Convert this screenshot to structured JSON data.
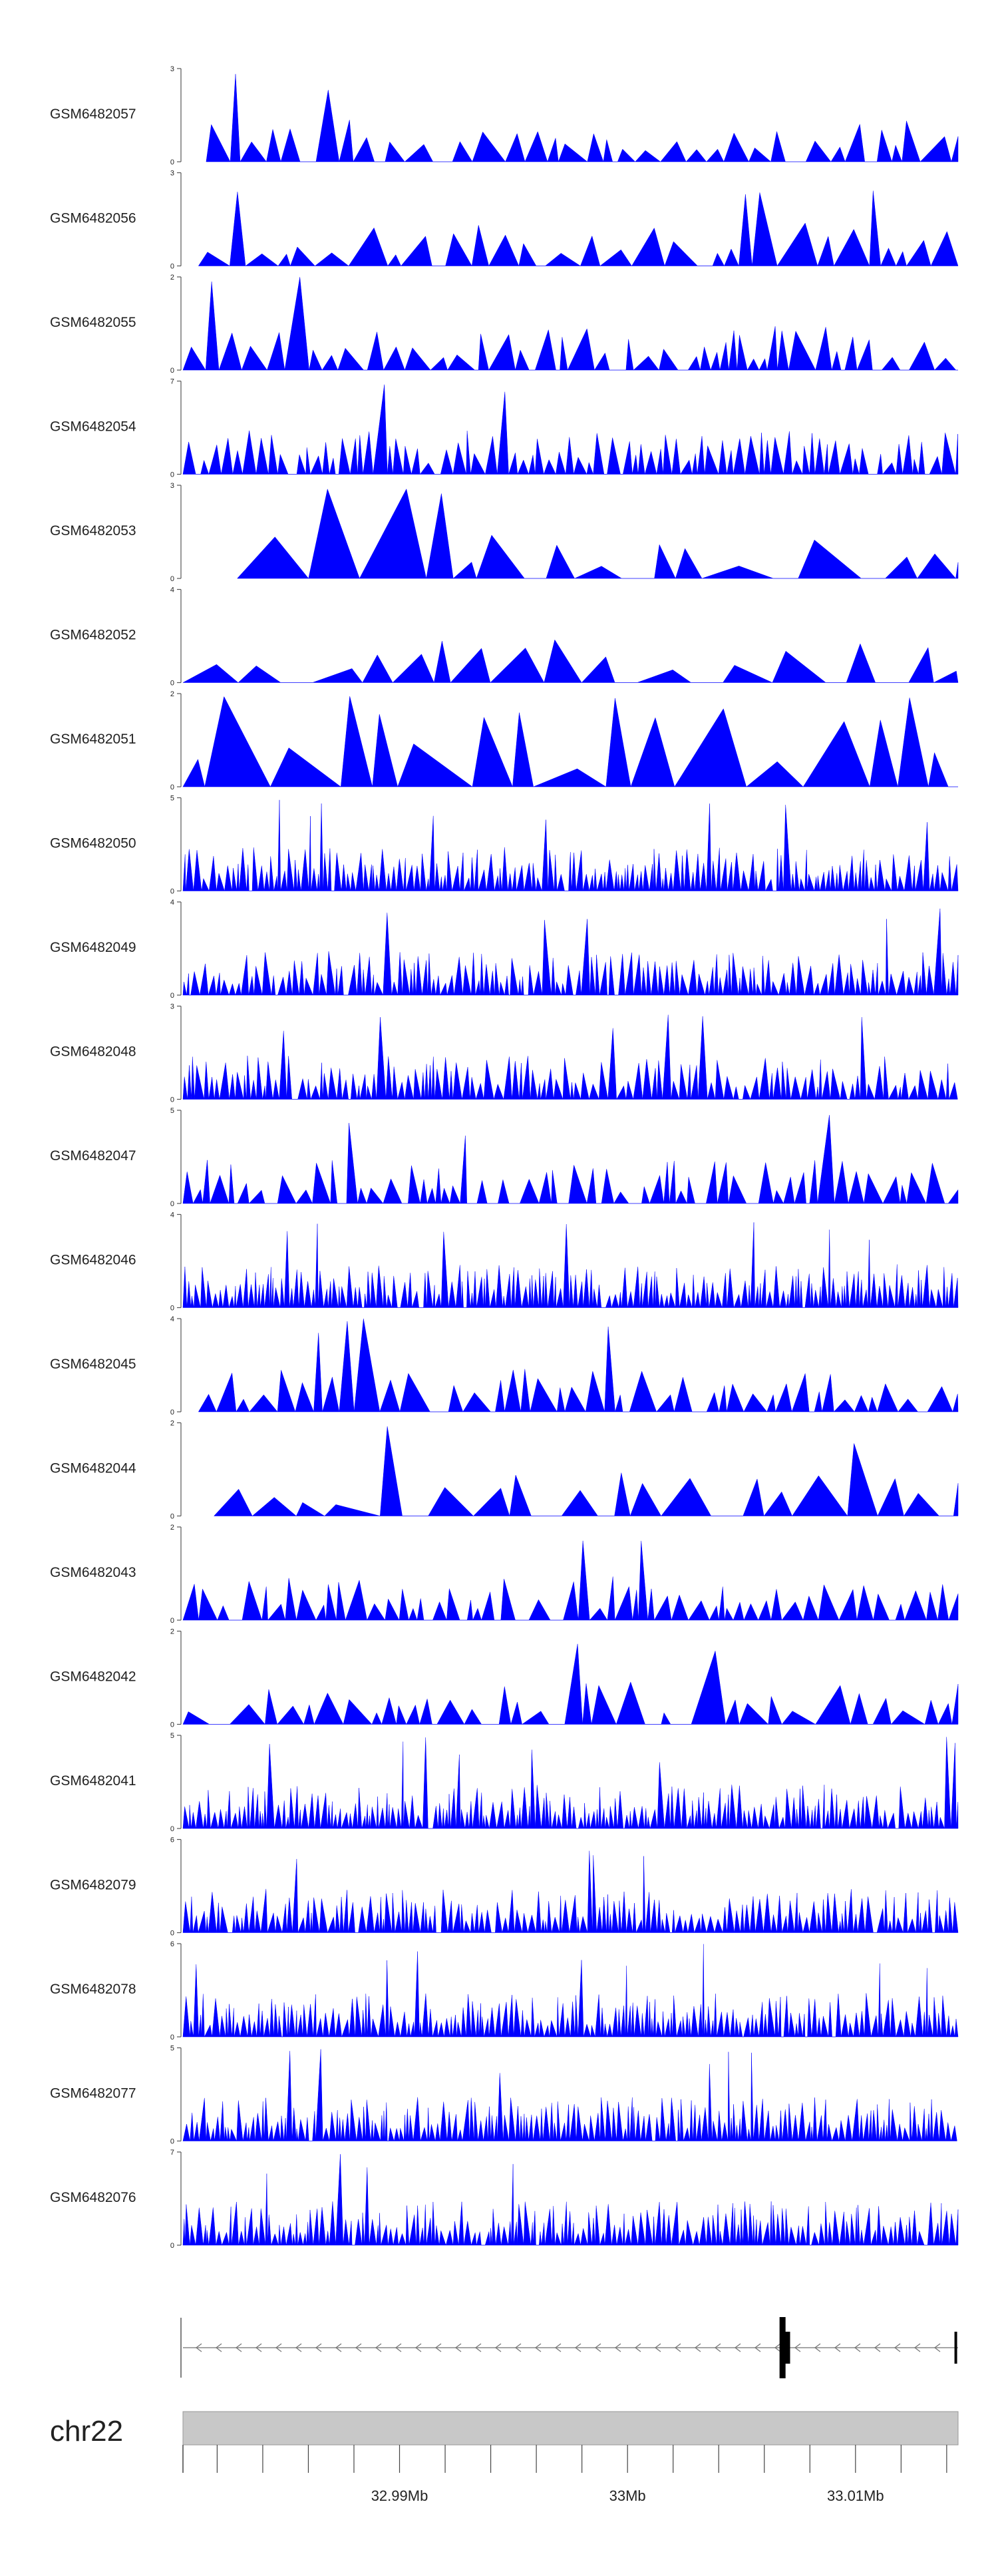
{
  "chart_data": {
    "type": "area",
    "title": "",
    "color": "#0000ff",
    "tracks": [
      {
        "label": "GSM6482057",
        "ymax": 3
      },
      {
        "label": "GSM6482056",
        "ymax": 3
      },
      {
        "label": "GSM6482055",
        "ymax": 2
      },
      {
        "label": "GSM6482054",
        "ymax": 7
      },
      {
        "label": "GSM6482053",
        "ymax": 3
      },
      {
        "label": "GSM6482052",
        "ymax": 4
      },
      {
        "label": "GSM6482051",
        "ymax": 2
      },
      {
        "label": "GSM6482050",
        "ymax": 5
      },
      {
        "label": "GSM6482049",
        "ymax": 4
      },
      {
        "label": "GSM6482048",
        "ymax": 3
      },
      {
        "label": "GSM6482047",
        "ymax": 5
      },
      {
        "label": "GSM6482046",
        "ymax": 4
      },
      {
        "label": "GSM6482045",
        "ymax": 4
      },
      {
        "label": "GSM6482044",
        "ymax": 2
      },
      {
        "label": "GSM6482043",
        "ymax": 2
      },
      {
        "label": "GSM6482042",
        "ymax": 2
      },
      {
        "label": "GSM6482041",
        "ymax": 5
      },
      {
        "label": "GSM6482079",
        "ymax": 6
      },
      {
        "label": "GSM6482078",
        "ymax": 6
      },
      {
        "label": "GSM6482077",
        "ymax": 5
      },
      {
        "label": "GSM6482076",
        "ymax": 7
      }
    ],
    "x_axis": {
      "chromosome": "chr22",
      "range_mb": [
        32.9805,
        33.0145
      ],
      "tick_labels": [
        {
          "value": 32.99,
          "label": "32.99Mb"
        },
        {
          "value": 33.0,
          "label": "33Mb"
        },
        {
          "value": 33.01,
          "label": "33.01Mb"
        }
      ]
    },
    "gene_model": {
      "strand": "-",
      "start_mb": 32.9805,
      "end_mb": 33.0145,
      "exons_mb": [
        33.0068,
        33.007,
        33.0144
      ]
    }
  }
}
